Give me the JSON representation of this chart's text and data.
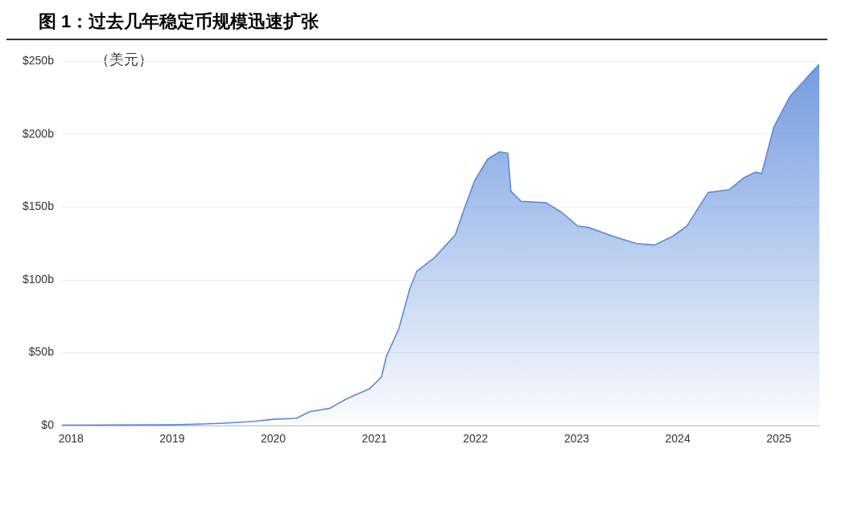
{
  "chart_data": {
    "type": "area",
    "title": "图 1：过去几年稳定币规模迅速扩张",
    "ylabel": "（美元）",
    "x": [
      2017.91,
      2019.0,
      2019.25,
      2019.53,
      2019.82,
      2019.99,
      2020.23,
      2020.36,
      2020.56,
      2020.73,
      2020.95,
      2021.07,
      2021.12,
      2021.24,
      2021.35,
      2021.42,
      2021.59,
      2021.8,
      2021.89,
      2021.99,
      2022.12,
      2022.24,
      2022.32,
      2022.35,
      2022.45,
      2022.7,
      2022.86,
      2023.01,
      2023.12,
      2023.36,
      2023.59,
      2023.77,
      2023.95,
      2024.09,
      2024.3,
      2024.51,
      2024.65,
      2024.77,
      2024.83,
      2024.95,
      2025.11,
      2025.24,
      2025.33,
      2025.4
    ],
    "series": [
      {
        "color": "#5b8ad9",
        "values": [
          0.3,
          0.6,
          1,
          1.8,
          3,
          4.3,
          5.1,
          9.6,
          11.9,
          18.6,
          25.2,
          33.4,
          48,
          66,
          94,
          106,
          115,
          131,
          149,
          168,
          183,
          188,
          187,
          161,
          154,
          153,
          146,
          137,
          136,
          130,
          125,
          124,
          130,
          137,
          160,
          162,
          170,
          174,
          173,
          205,
          226,
          236,
          243,
          248
        ]
      }
    ],
    "xlim": [
      2017.91,
      2025.4
    ],
    "xticks": [
      2018,
      2019,
      2020,
      2021,
      2022,
      2023,
      2024,
      2025
    ],
    "ylim": [
      0,
      250
    ],
    "yticks": [
      {
        "value": 0,
        "label": "$0"
      },
      {
        "value": 50,
        "label": "$50b"
      },
      {
        "value": 100,
        "label": "$100b"
      },
      {
        "value": 150,
        "label": "$150b"
      },
      {
        "value": 200,
        "label": "$200b"
      },
      {
        "value": 250,
        "label": "$250b"
      }
    ],
    "grid": "y",
    "legend": false,
    "marker": "none",
    "line_style": "solid"
  }
}
